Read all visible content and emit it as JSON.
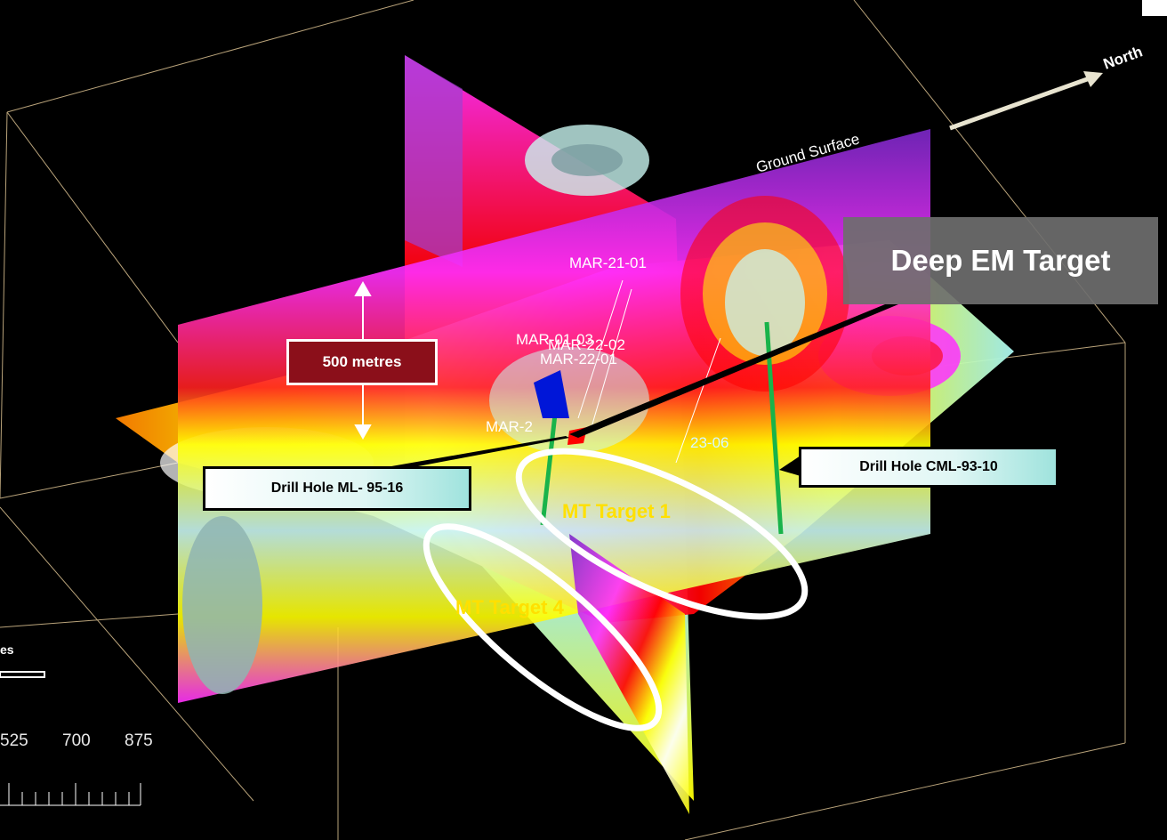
{
  "labels": {
    "north": "North",
    "ground_surface": "Ground Surface",
    "deep_em_target": "Deep EM Target",
    "depth_marker": "500 metres",
    "drill_hole_ml": "Drill Hole ML- 95-16",
    "drill_hole_cml": "Drill Hole CML-93-10",
    "mt_target_1": "MT Target 1",
    "mt_target_4": "MT Target 4"
  },
  "drill_holes": {
    "mar_21_01": "MAR-21-01",
    "mar_01_03": "MAR-01-03",
    "mar_22_02": "MAR-22-02",
    "mar_22_01": "MAR-22-01",
    "mar_2": "MAR-2",
    "hole_23_06": "23-06"
  },
  "scale_bar": {
    "unit_fragment": "es",
    "ticks": [
      "525",
      "700",
      "875"
    ]
  },
  "colors": {
    "background": "#000000",
    "box_edges": "#b9a37a",
    "drill_trace": "#19b34a",
    "target_ellipse": "#ffffff",
    "target_text": "#ffe000",
    "resistivity_palette": [
      "#ff2fff",
      "#c020e0",
      "#7a28c8",
      "#ff0000",
      "#ff8000",
      "#ffff00",
      "#cdff32",
      "#ffffff",
      "#a8f5f2",
      "#8fb5b2"
    ]
  }
}
